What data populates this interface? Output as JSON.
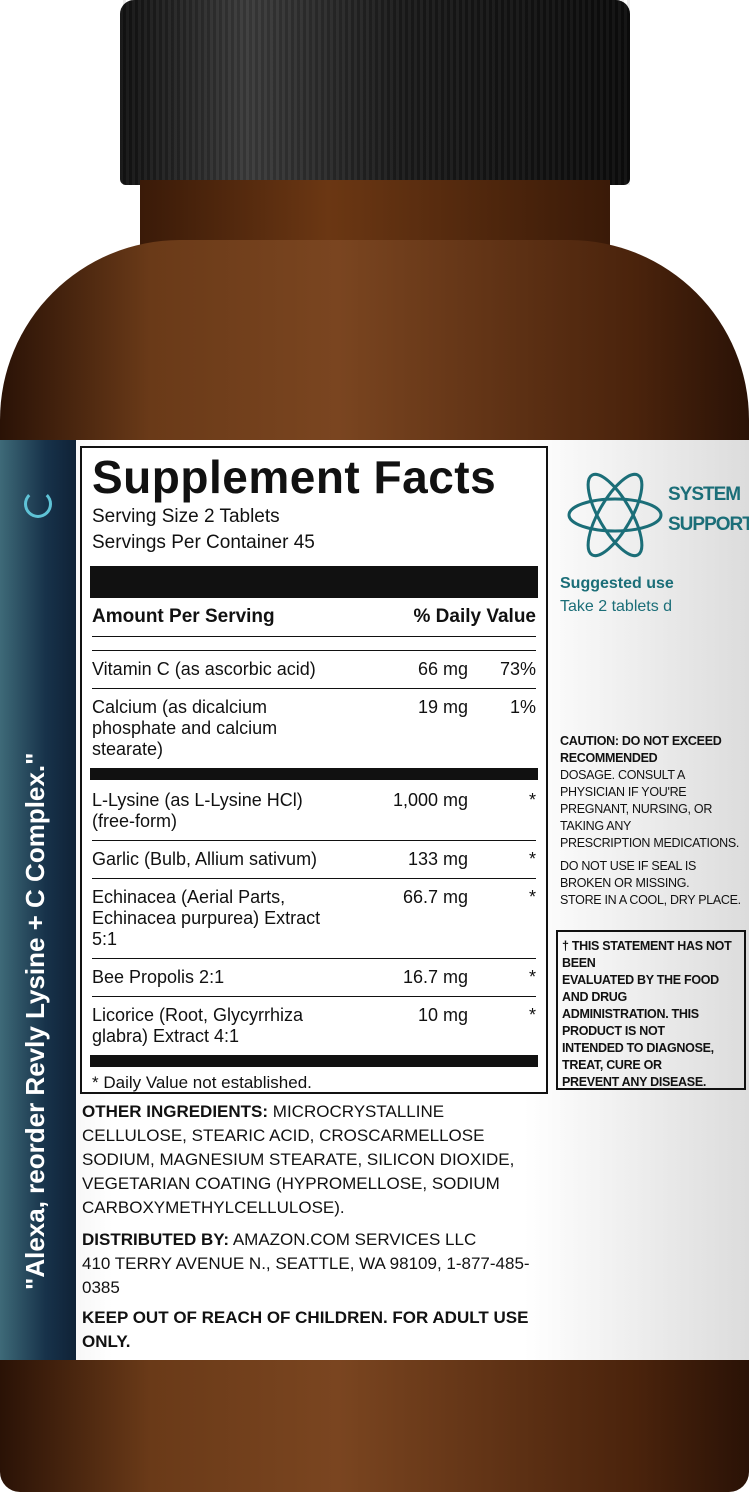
{
  "brand_tagline": "\"Alexa, reorder Revly Lysine + C Complex.\"",
  "colors": {
    "teal": "#1b6e78",
    "strip": "#17324a",
    "glass": "#6a3a18",
    "cap": "#111111"
  },
  "facts": {
    "title": "Supplement Facts",
    "serving_size": "Serving Size 2 Tablets",
    "servings_per_container": "Servings Per Container 45",
    "header_amount": "Amount Per Serving",
    "header_dv": "% Daily Value",
    "rows": [
      {
        "name": "Vitamin C (as ascorbic acid)",
        "amount": "66 mg",
        "dv": "73%"
      },
      {
        "name": "Calcium (as dicalcium phosphate and calcium stearate)",
        "amount": "19 mg",
        "dv": "1%"
      },
      {
        "name": "L-Lysine (as L-Lysine HCl) (free-form)",
        "amount": "1,000 mg",
        "dv": "*"
      },
      {
        "name": "Garlic (Bulb, Allium sativum)",
        "amount": "133 mg",
        "dv": "*"
      },
      {
        "name": "Echinacea (Aerial Parts, Echinacea purpurea) Extract 5:1",
        "amount": "66.7 mg",
        "dv": "*"
      },
      {
        "name": "Bee Propolis 2:1",
        "amount": "16.7 mg",
        "dv": "*"
      },
      {
        "name": "Licorice (Root, Glycyrrhiza glabra) Extract 4:1",
        "amount": "10 mg",
        "dv": "*"
      }
    ],
    "footnote": "* Daily Value not established."
  },
  "system": {
    "line1": "SYSTEM",
    "line2": "SUPPORT",
    "suggested": "Suggested use",
    "take": "Take 2 tablets d"
  },
  "caution": [
    "CAUTION: DO NOT EXCEED RECOMMENDED",
    "DOSAGE. CONSULT A PHYSICIAN IF YOU'RE",
    "PREGNANT, NURSING, OR TAKING ANY",
    "PRESCRIPTION MEDICATIONS.",
    "DO NOT USE IF SEAL IS BROKEN OR MISSING.",
    "STORE IN A COOL, DRY PLACE."
  ],
  "statement": [
    "† THIS STATEMENT HAS NOT BEEN",
    "EVALUATED BY THE FOOD AND DRUG",
    "ADMINISTRATION. THIS PRODUCT IS NOT",
    "INTENDED TO DIAGNOSE, TREAT, CURE OR",
    "PREVENT ANY DISEASE."
  ],
  "other_label": "OTHER INGREDIENTS:",
  "other_text": "MICROCRYSTALLINE CELLULOSE, STEARIC ACID, CROSCARMELLOSE SODIUM, MAGNESIUM STEARATE, SILICON DIOXIDE, VEGETARIAN COATING (HYPROMELLOSE, SODIUM CARBOXYMETHYLCELLULOSE).",
  "dist_label": "DISTRIBUTED BY:",
  "dist_text": "AMAZON.COM SERVICES LLC",
  "address": "410 TERRY AVENUE N., SEATTLE, WA 98109, 1-877-485-0385",
  "keep_out": "KEEP OUT OF REACH OF CHILDREN. FOR ADULT USE ONLY."
}
